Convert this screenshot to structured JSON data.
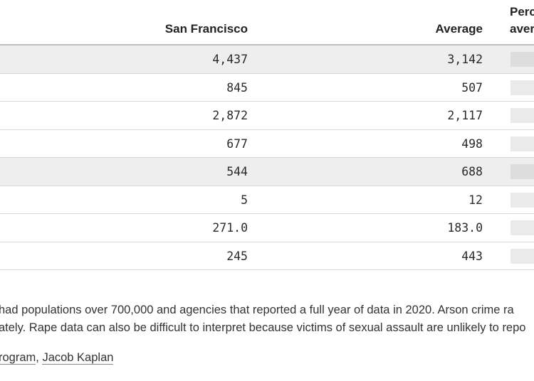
{
  "header": {
    "col_sf": "San Francisco",
    "col_avg": "Average",
    "col_pct_line1": "Perc",
    "col_pct_line2": "aver"
  },
  "rows": [
    {
      "sf": "4,437",
      "avg": "3,142",
      "shaded": true
    },
    {
      "sf": "845",
      "avg": "507",
      "shaded": false
    },
    {
      "sf": "2,872",
      "avg": "2,117",
      "shaded": false
    },
    {
      "sf": "677",
      "avg": "498",
      "shaded": false
    },
    {
      "sf": "544",
      "avg": "688",
      "shaded": true
    },
    {
      "sf": "5",
      "avg": "12",
      "shaded": false
    },
    {
      "sf": "271.0",
      "avg": "183.0",
      "shaded": false
    },
    {
      "sf": "245",
      "avg": "443",
      "shaded": false
    }
  ],
  "note": {
    "line1": "had populations over 700,000 and agencies that reported a full year of data in 2020. Arson crime ra",
    "line2": "ately. Rape data can also be difficult to interpret because victims of sexual assault are unlikely to repo"
  },
  "source": {
    "link1": "rogram",
    "separator": ", ",
    "link2": "Jacob Kaplan"
  },
  "colors": {
    "shaded_row": "#eeeeee",
    "rule": "#bdbdbd",
    "bar": "#eaeaea"
  }
}
